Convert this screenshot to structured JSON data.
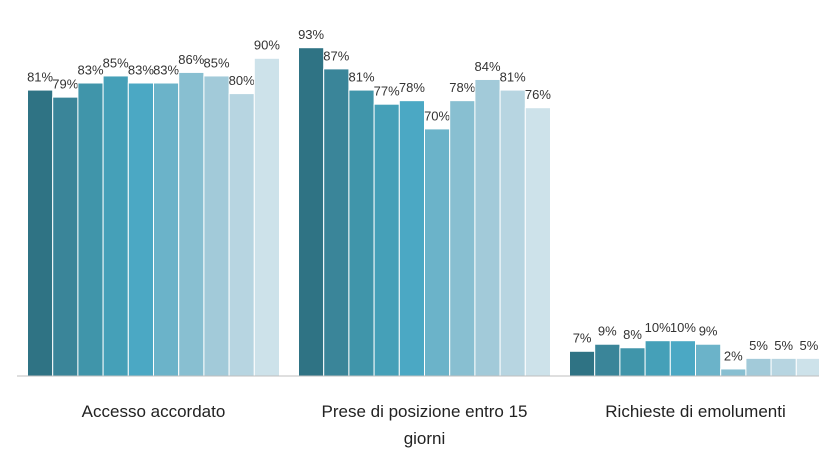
{
  "chart_data": {
    "type": "bar",
    "categories": [
      "Accesso accordato",
      "Prese di posizione entro 15 giorni",
      "Richieste di emolumenti"
    ],
    "ylim": [
      0,
      100
    ],
    "series": [
      {
        "color": "#2f7384",
        "values": [
          81,
          93,
          7
        ],
        "value_labels": [
          "81%",
          "93%",
          "7%"
        ]
      },
      {
        "color": "#3a8599",
        "values": [
          79,
          87,
          9
        ],
        "value_labels": [
          "79%",
          "87%",
          "9%"
        ]
      },
      {
        "color": "#4095aa",
        "values": [
          83,
          81,
          8
        ],
        "value_labels": [
          "83%",
          "81%",
          "8%"
        ]
      },
      {
        "color": "#45a0b8",
        "values": [
          85,
          77,
          10
        ],
        "value_labels": [
          "85%",
          "77%",
          "10%"
        ]
      },
      {
        "color": "#4ba8c4",
        "values": [
          83,
          78,
          10
        ],
        "value_labels": [
          "83%",
          "78%",
          "10%"
        ]
      },
      {
        "color": "#6bb3c9",
        "values": [
          83,
          70,
          9
        ],
        "value_labels": [
          "83%",
          "70%",
          "9%"
        ]
      },
      {
        "color": "#88bfd1",
        "values": [
          86,
          78,
          2
        ],
        "value_labels": [
          "86%",
          "78%",
          "2%"
        ]
      },
      {
        "color": "#a2cad9",
        "values": [
          85,
          84,
          5
        ],
        "value_labels": [
          "85%",
          "84%",
          "5%"
        ]
      },
      {
        "color": "#b7d5e1",
        "values": [
          80,
          81,
          5
        ],
        "value_labels": [
          "80%",
          "81%",
          "5%"
        ]
      },
      {
        "color": "#cde2ea",
        "values": [
          90,
          76,
          5
        ],
        "value_labels": [
          "90%",
          "76%",
          "5%"
        ]
      }
    ]
  }
}
